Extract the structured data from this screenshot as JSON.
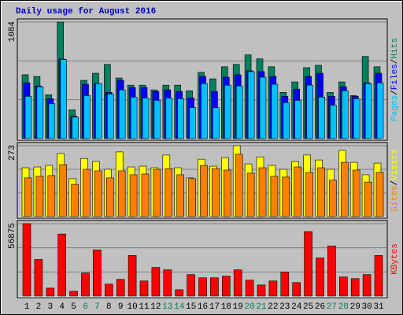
{
  "chart_data": [
    {
      "type": "bar",
      "title": "Daily usage for August 2016",
      "legend_separator": "/",
      "ylim": [
        0,
        1084
      ],
      "yticks": [
        1084
      ],
      "series": [
        {
          "name": "Hits",
          "color": "#00805c",
          "values": [
            594,
            578,
            408,
            1084,
            267,
            542,
            608,
            690,
            564,
            497,
            497,
            453,
            497,
            497,
            445,
            616,
            556,
            668,
            690,
            779,
            742,
            668,
            430,
            527,
            660,
            682,
            430,
            527,
            400,
            764,
            668
          ]
        },
        {
          "name": "Files",
          "color": "#0000ff",
          "values": [
            519,
            490,
            371,
            740,
            208,
            505,
            512,
            430,
            542,
            475,
            475,
            438,
            453,
            438,
            378,
            578,
            438,
            571,
            594,
            631,
            623,
            578,
            393,
            460,
            578,
            608,
            393,
            482,
            393,
            519,
            608
          ]
        },
        {
          "name": "Pages",
          "color": "#00c0ff",
          "values": [
            393,
            482,
            326,
            735,
            200,
            400,
            512,
            415,
            453,
            386,
            378,
            356,
            378,
            371,
            289,
            512,
            289,
            497,
            490,
            623,
            571,
            505,
            334,
            356,
            497,
            386,
            311,
            445,
            371,
            512,
            519
          ]
        }
      ]
    },
    {
      "type": "bar",
      "legend_separator": "/",
      "ylim": [
        0,
        273
      ],
      "yticks": [
        273
      ],
      "series": [
        {
          "name": "Visits",
          "color": "#ffff00",
          "values": [
            188,
            191,
            197,
            243,
            146,
            224,
            212,
            182,
            249,
            191,
            194,
            188,
            237,
            188,
            149,
            221,
            194,
            227,
            273,
            203,
            230,
            197,
            182,
            212,
            237,
            218,
            182,
            255,
            209,
            161,
            206
          ]
        },
        {
          "name": "Sites",
          "color": "#ff8000",
          "values": [
            149,
            155,
            158,
            200,
            124,
            182,
            176,
            149,
            176,
            161,
            164,
            182,
            185,
            161,
            146,
            197,
            185,
            179,
            240,
            167,
            188,
            155,
            152,
            191,
            170,
            188,
            140,
            209,
            179,
            133,
            170
          ]
        }
      ]
    },
    {
      "type": "bar",
      "ylim": [
        0,
        56875
      ],
      "yticks": [
        56875
      ],
      "categories": [
        "1",
        "2",
        "3",
        "4",
        "5",
        "6",
        "7",
        "8",
        "9",
        "10",
        "11",
        "12",
        "13",
        "14",
        "15",
        "16",
        "17",
        "18",
        "19",
        "20",
        "21",
        "22",
        "23",
        "24",
        "25",
        "26",
        "27",
        "28",
        "29",
        "30",
        "31"
      ],
      "category_colors": [
        "#000000",
        "#000000",
        "#000000",
        "#000000",
        "#000000",
        "#00805c",
        "#00805c",
        "#000000",
        "#000000",
        "#000000",
        "#000000",
        "#000000",
        "#00805c",
        "#00805c",
        "#000000",
        "#000000",
        "#000000",
        "#000000",
        "#000000",
        "#00805c",
        "#00805c",
        "#000000",
        "#000000",
        "#000000",
        "#000000",
        "#000000",
        "#00805c",
        "#00805c",
        "#000000",
        "#000000",
        "#000000"
      ],
      "series": [
        {
          "name": "KBytes",
          "color": "#ff0000",
          "values": [
            56875,
            28750,
            6250,
            48750,
            3750,
            18125,
            36250,
            9375,
            13125,
            31875,
            11875,
            22500,
            20625,
            5000,
            16875,
            14375,
            14375,
            15625,
            20625,
            12500,
            8750,
            11875,
            18750,
            10625,
            50625,
            30000,
            39375,
            15000,
            13750,
            16875,
            31875
          ]
        }
      ]
    }
  ]
}
